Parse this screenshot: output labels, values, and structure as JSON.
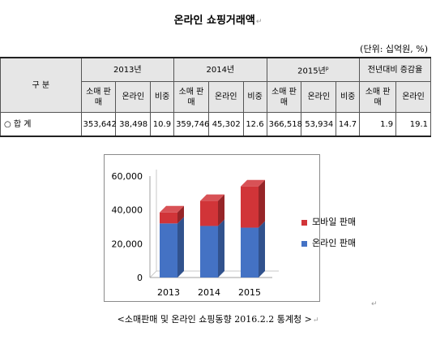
{
  "document": {
    "title": "온라인 쇼핑거래액",
    "unit": "(단위: 십억원, %)",
    "caption": "<소매판매 및 온라인 쇼핑동향 2016.2.2 통계청 >"
  },
  "table": {
    "header_group": "구  분",
    "years": [
      "2013년",
      "2014년",
      "2015년"
    ],
    "year_superscript": "p",
    "change_header": "전년대비 증감율",
    "sub_headers": [
      "소매 판매",
      "온라인",
      "비중",
      "소매 판매",
      "온라인",
      "비중",
      "소매 판매",
      "온라인",
      "비중",
      "소매 판매",
      "온라인"
    ],
    "row_label": "○  합  계",
    "row_values": [
      "353,642",
      "38,498",
      "10.9",
      "359,746",
      "45,302",
      "12.6",
      "366,518",
      "53,934",
      "14.7",
      "1.9",
      "19.1"
    ]
  },
  "chart_data": {
    "type": "bar",
    "stacked": true,
    "categories": [
      "2013",
      "2014",
      "2015"
    ],
    "series": [
      {
        "name": "온라인 판매",
        "values": [
          32000,
          30500,
          29500
        ],
        "color": "#4472c4"
      },
      {
        "name": "모바일 판매",
        "values": [
          6500,
          14800,
          24400
        ],
        "color": "#d13438"
      }
    ],
    "y_ticks": [
      "0",
      "20,000",
      "40,000",
      "60,000"
    ],
    "ylim": [
      0,
      60000
    ],
    "grid": false,
    "legend_position": "right",
    "style": "3d"
  }
}
